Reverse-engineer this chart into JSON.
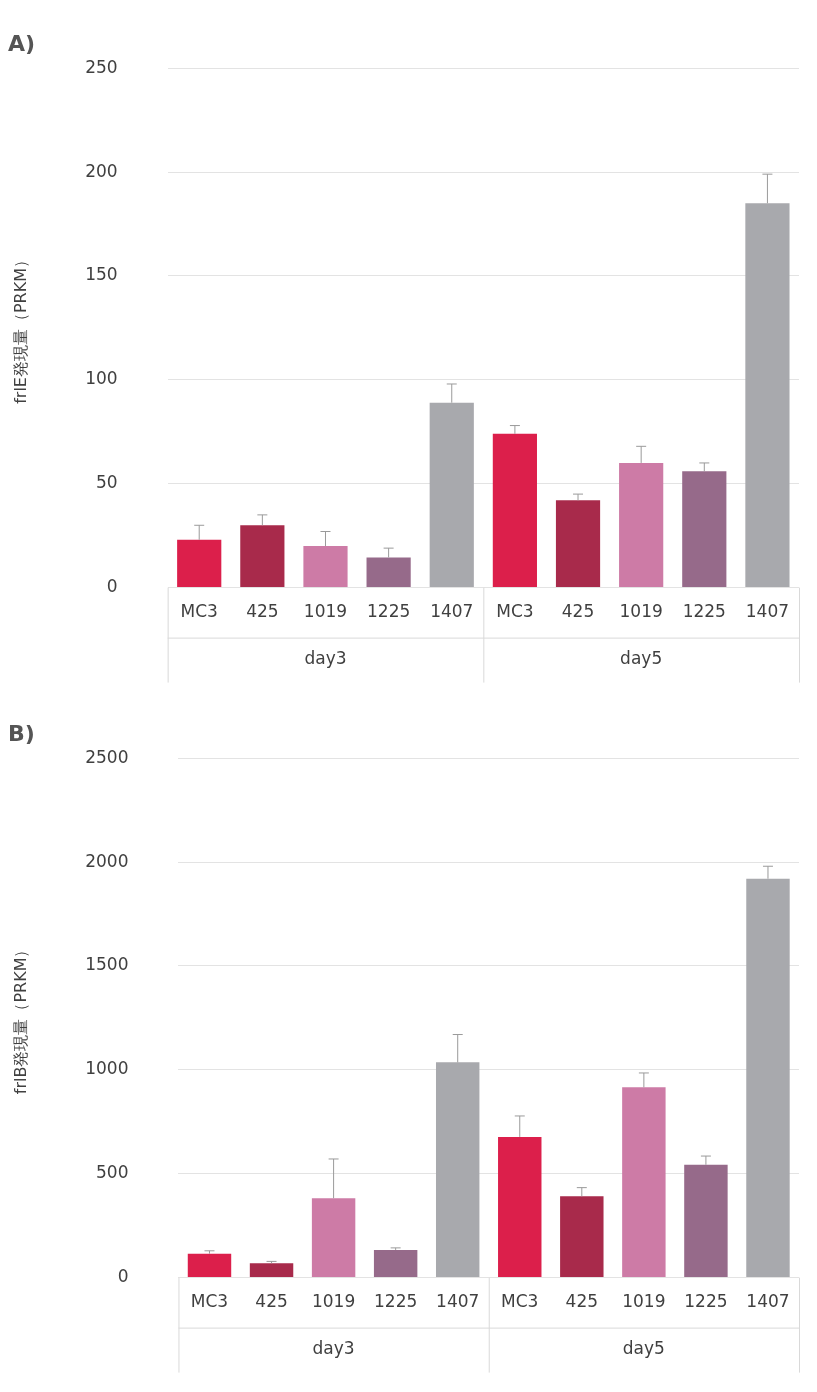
{
  "chart_data": [
    {
      "type": "bar",
      "title": "A)",
      "ylabel": "frlE発現量（PRKM）",
      "categories": [
        "MC3",
        "425",
        "1019",
        "1225",
        "1407",
        "MC3",
        "425",
        "1019",
        "1225",
        "1407"
      ],
      "values": [
        23,
        30,
        20,
        14.5,
        89,
        74,
        42,
        60,
        56,
        185
      ],
      "errors": [
        7,
        5,
        7,
        4.5,
        9,
        4,
        3,
        8,
        4,
        14
      ],
      "colors": [
        "#dc1f4b",
        "#a82a4b",
        "#cd7ba6",
        "#966a8a",
        "#a8a9ad",
        "#dc1f4b",
        "#a82a4b",
        "#cd7ba6",
        "#966a8a",
        "#a8a9ad"
      ],
      "ylim": [
        0,
        250
      ],
      "yticks": [
        0,
        50,
        100,
        150,
        200,
        250
      ],
      "grid": "y",
      "legend": false,
      "annotations": [
        "day3",
        "day5"
      ]
    },
    {
      "type": "bar",
      "title": "B)",
      "ylabel": "frlB発現量（PRKM）",
      "categories": [
        "MC3",
        "425",
        "1019",
        "1225",
        "1407",
        "MC3",
        "425",
        "1019",
        "1225",
        "1407"
      ],
      "values": [
        115,
        69,
        382,
        133,
        1036,
        677,
        391,
        916,
        543,
        1920
      ],
      "errors": [
        14,
        9,
        189,
        10,
        134,
        101,
        42,
        69,
        42,
        60
      ],
      "colors": [
        "#dc1f4b",
        "#a82a4b",
        "#cd7ba6",
        "#966a8a",
        "#a8a9ad",
        "#dc1f4b",
        "#a82a4b",
        "#cd7ba6",
        "#966a8a",
        "#a8a9ad"
      ],
      "ylim": [
        0,
        2500
      ],
      "yticks": [
        0,
        500,
        1000,
        1500,
        2000,
        2500
      ],
      "grid": "y",
      "legend": false,
      "annotations": [
        "day3",
        "day5"
      ]
    }
  ]
}
